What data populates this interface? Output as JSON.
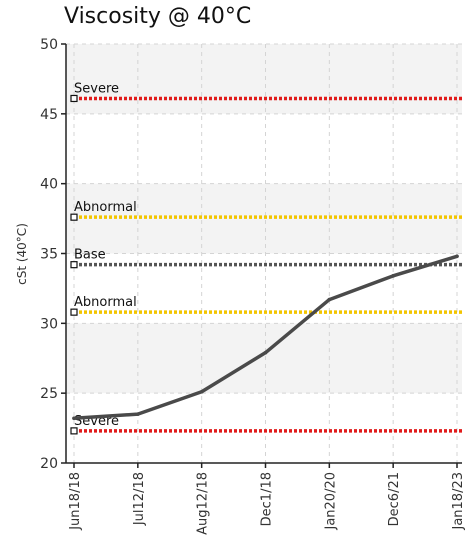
{
  "chart_data": {
    "type": "line",
    "title": "Viscosity @ 40°C",
    "ylabel": "cSt (40°C)",
    "xlabel": "",
    "ylim": [
      20,
      50
    ],
    "yticks": [
      20,
      25,
      30,
      35,
      40,
      45,
      50
    ],
    "categories": [
      "Jun18/18",
      "Jul12/18",
      "Aug12/18",
      "Dec1/18",
      "Jan20/20",
      "Dec6/21",
      "Jan18/23"
    ],
    "series": [
      {
        "values": [
          23.2,
          23.5,
          25.1,
          27.9,
          31.7,
          33.4,
          34.8
        ],
        "color": "#4a4a4a"
      }
    ],
    "reference_lines": [
      {
        "label": "Severe",
        "value": 46.1,
        "color": "#e11b1b"
      },
      {
        "label": "Abnormal",
        "value": 37.6,
        "color": "#f2c500"
      },
      {
        "label": "Base",
        "value": 34.2,
        "color": "#555555"
      },
      {
        "label": "Abnormal",
        "value": 30.8,
        "color": "#f2c500"
      },
      {
        "label": "Severe",
        "value": 22.3,
        "color": "#e11b1b"
      }
    ],
    "grid": true,
    "bands": "alternating light grey horizontal bands"
  }
}
